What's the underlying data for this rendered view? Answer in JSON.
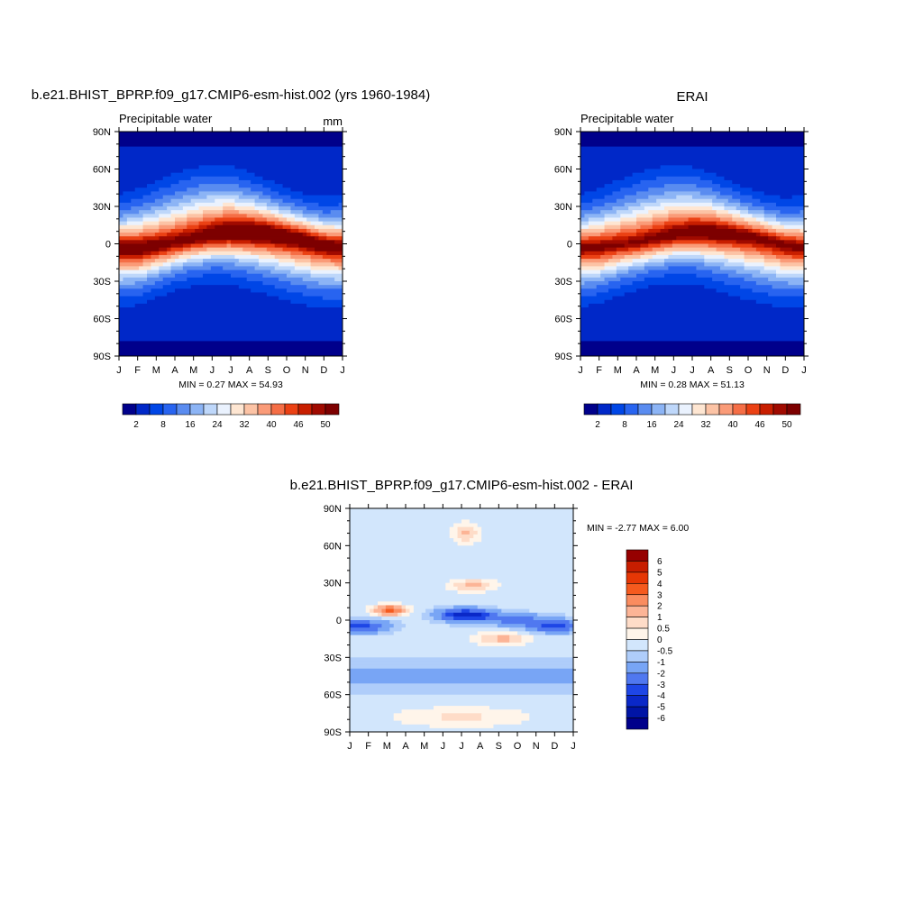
{
  "panels": {
    "model": {
      "title": "b.e21.BHIST_BPRP.f09_g17.CMIP6-esm-hist.002 (yrs 1960-1984)",
      "left_label": "Precipitable water",
      "right_label": "mm",
      "min_max": "MIN =   0.27 MAX =  54.93"
    },
    "obs": {
      "title": "ERAI",
      "left_label": "Precipitable water",
      "min_max": "MIN =   0.28 MAX =  51.13"
    },
    "diff": {
      "title": "b.e21.BHIST_BPRP.f09_g17.CMIP6-esm-hist.002 - ERAI",
      "min_max": "MIN =  -2.77 MAX =   6.00"
    }
  },
  "axes": {
    "x_ticks": [
      "J",
      "F",
      "M",
      "A",
      "M",
      "J",
      "J",
      "A",
      "S",
      "O",
      "N",
      "D",
      "J"
    ],
    "y_ticks": [
      "90N",
      "60N",
      "30N",
      "0",
      "30S",
      "60S",
      "90S"
    ]
  },
  "colorbars": {
    "main": {
      "labels": [
        "2",
        "8",
        "16",
        "24",
        "32",
        "40",
        "46",
        "50"
      ],
      "colors": [
        "#00008b",
        "#0028c8",
        "#0046e6",
        "#2864f0",
        "#5a8cf0",
        "#8cb4f5",
        "#bed7fa",
        "#eaf2fe",
        "#fee6d2",
        "#fcc3a5",
        "#fa9b78",
        "#f56e46",
        "#eb4114",
        "#c81e00",
        "#a00a00",
        "#7d0000"
      ]
    },
    "diff": {
      "labels": [
        "6",
        "5",
        "4",
        "3",
        "2",
        "1",
        "0.5",
        "0",
        "-0.5",
        "-1",
        "-2",
        "-3",
        "-4",
        "-5",
        "-6"
      ],
      "colors": [
        "#960000",
        "#c81e00",
        "#e63705",
        "#f55a1e",
        "#fa8c5f",
        "#fcb496",
        "#fedcc8",
        "#fff5ea",
        "#d2e6fc",
        "#afcdfa",
        "#78a5f5",
        "#5078f0",
        "#1e46e6",
        "#0a28c8",
        "#0014a5",
        "#00008b"
      ]
    }
  },
  "chart_data": [
    {
      "type": "heatmap",
      "title": "b.e21.BHIST_BPRP.f09_g17.CMIP6-esm-hist.002 (yrs 1960-1984)",
      "ylabel": "Precipitable water (mm)",
      "x": [
        "J",
        "F",
        "M",
        "A",
        "M",
        "J",
        "J",
        "A",
        "S",
        "O",
        "N",
        "D",
        "J"
      ],
      "y": [
        90,
        60,
        30,
        0,
        -30,
        -60,
        -90
      ],
      "min": 0.27,
      "max": 54.93,
      "contour_levels": [
        2,
        5,
        8,
        12,
        16,
        20,
        24,
        28,
        32,
        36,
        40,
        43,
        46,
        48,
        50
      ],
      "ridge_latitude": [
        -3,
        -4,
        -2,
        1,
        4,
        7,
        9,
        9,
        8,
        6,
        3,
        -1,
        -3
      ],
      "ridge_peak": [
        50,
        51,
        49,
        48,
        49,
        51,
        53,
        54,
        53,
        52,
        51,
        50,
        50
      ]
    },
    {
      "type": "heatmap",
      "title": "ERAI",
      "ylabel": "Precipitable water",
      "x": [
        "J",
        "F",
        "M",
        "A",
        "M",
        "J",
        "J",
        "A",
        "S",
        "O",
        "N",
        "D",
        "J"
      ],
      "y": [
        90,
        60,
        30,
        0,
        -30,
        -60,
        -90
      ],
      "min": 0.28,
      "max": 51.13,
      "contour_levels": [
        2,
        5,
        8,
        12,
        16,
        20,
        24,
        28,
        32,
        36,
        40,
        43,
        46,
        48,
        50
      ],
      "ridge_latitude": [
        -3,
        -3,
        -1,
        1,
        4,
        7,
        9,
        9,
        8,
        6,
        3,
        -1,
        -3
      ],
      "ridge_peak": [
        48,
        48,
        47,
        47,
        48,
        49,
        50,
        51,
        50,
        49,
        48,
        48,
        48
      ]
    },
    {
      "type": "heatmap",
      "title": "b.e21.BHIST_BPRP.f09_g17.CMIP6-esm-hist.002 - ERAI",
      "x": [
        "J",
        "F",
        "M",
        "A",
        "M",
        "J",
        "J",
        "A",
        "S",
        "O",
        "N",
        "D",
        "J"
      ],
      "y": [
        90,
        60,
        30,
        0,
        -30,
        -60,
        -90
      ],
      "min": -2.77,
      "max": 6.0,
      "contour_levels": [
        -6,
        -5,
        -4,
        -3,
        -2,
        -1,
        -0.5,
        0,
        0.5,
        1,
        2,
        3,
        4,
        5,
        6
      ]
    }
  ]
}
